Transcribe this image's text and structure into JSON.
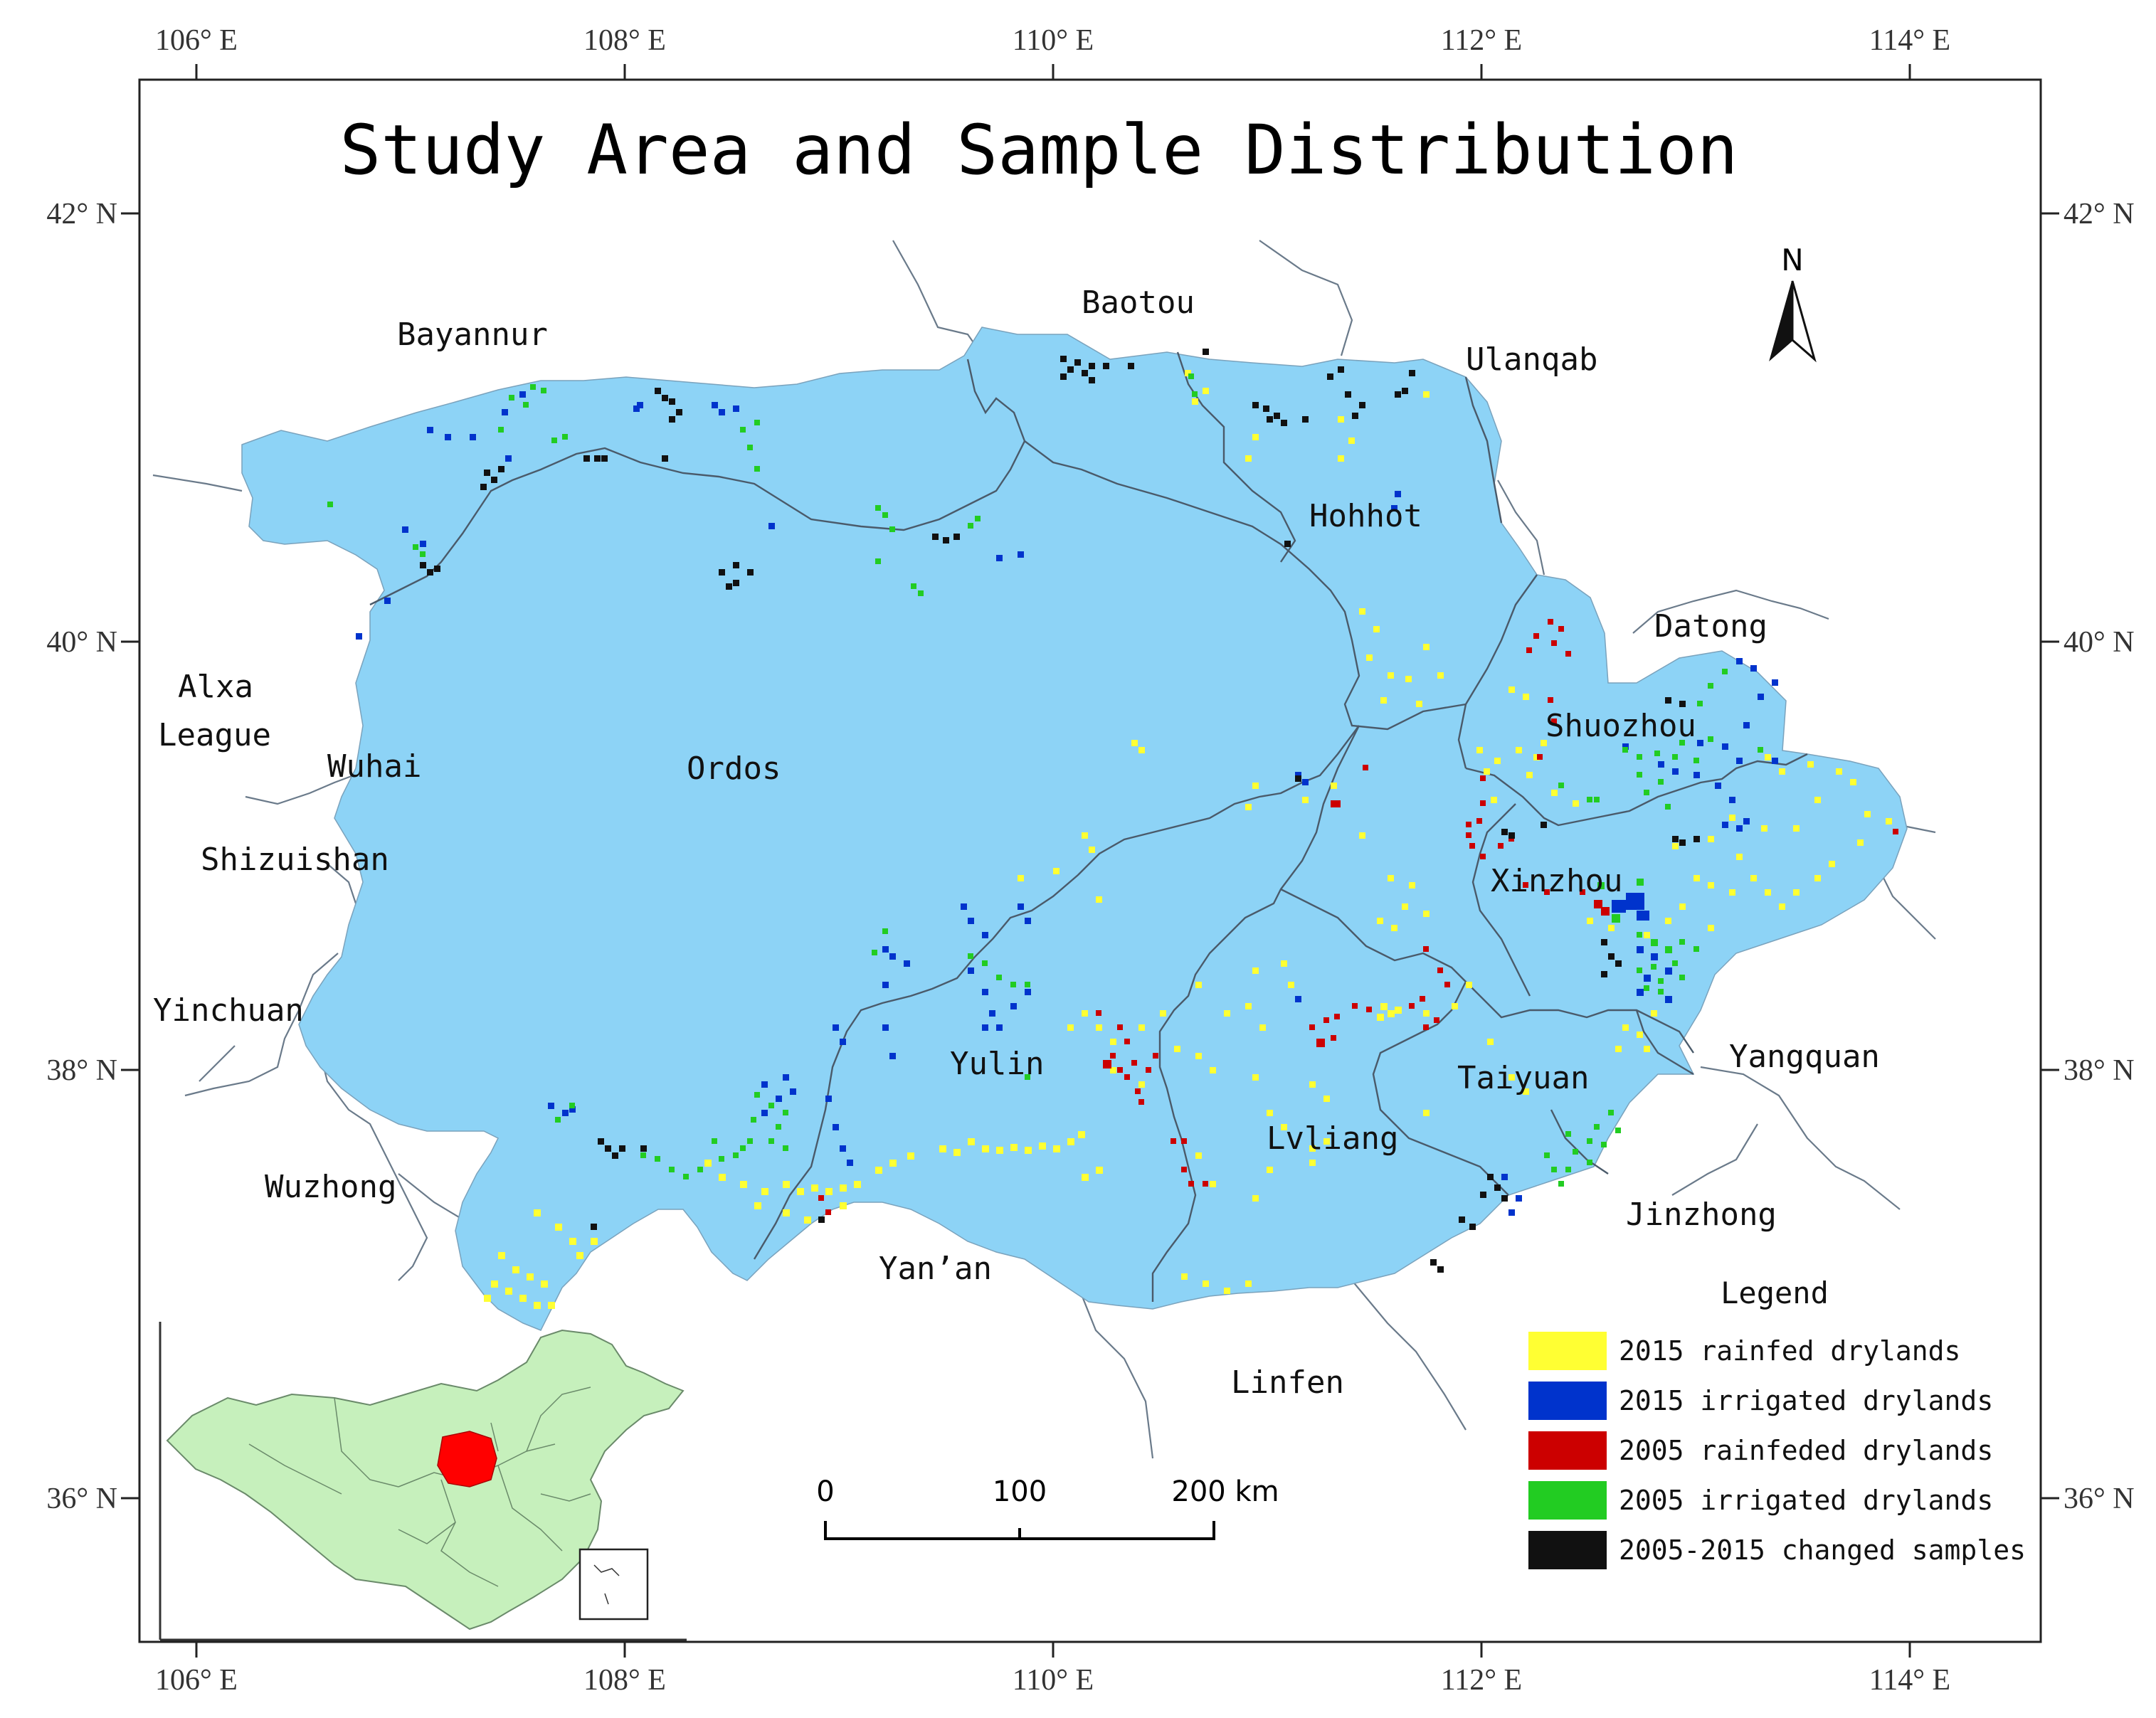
{
  "title": "Study Area and Sample Distribution",
  "colors": {
    "region_fill": "#8dd3f6",
    "boundary": "#5a6a7a",
    "rainfed_2015": "#ffff33",
    "irrigated_2015": "#0033cc",
    "rainfed_2005": "#cc0000",
    "irrigated_2005": "#22cc22",
    "changed": "#111111",
    "inset_land": "#c6f0bc",
    "inset_highlight": "#ff0000"
  },
  "top_lon_labels": [
    "106° E",
    "108° E",
    "110° E",
    "112° E",
    "114° E"
  ],
  "bottom_lon_labels": [
    "106° E",
    "108° E",
    "110° E",
    "112° E",
    "114° E"
  ],
  "left_lat_labels": [
    "42° N",
    "40° N",
    "38° N",
    "36° N"
  ],
  "right_lat_labels": [
    "42° N",
    "40° N",
    "38° N",
    "36° N"
  ],
  "cities": {
    "bayannur": "Bayannur",
    "baotou": "Baotou",
    "ulanqab": "Ulanqab",
    "hohhot": "Hohhot",
    "datong": "Datong",
    "shuozhou": "Shuozhou",
    "alxa_line1": "Alxa",
    "alxa_line2": "League",
    "wuhai": "Wuhai",
    "ordos": "Ordos",
    "shizuishan": "Shizuishan",
    "xinzhou": "Xinzhou",
    "yinchuan": "Yinchuan",
    "yulin": "Yulin",
    "yangquan": "Yangquan",
    "taiyuan": "Taiyuan",
    "lvliang": "Lvliang",
    "wuzhong": "Wuzhong",
    "jinzhong": "Jinzhong",
    "yanan": "Yan’an",
    "linfen": "Linfen"
  },
  "north_arrow": {
    "label": "N"
  },
  "scale_bar": {
    "labels": [
      "0",
      "100",
      "200 km"
    ]
  },
  "legend": {
    "title": "Legend",
    "items": [
      {
        "label": "2015 rainfed drylands",
        "color": "#ffff33",
        "class": "rainfed_2015"
      },
      {
        "label": "2015 irrigated drylands",
        "color": "#0033cc",
        "class": "irrigated_2015"
      },
      {
        "label": "2005 rainfeded drylands",
        "color": "#cc0000",
        "class": "rainfed_2005"
      },
      {
        "label": "2005 irrigated drylands",
        "color": "#22cc22",
        "class": "irrigated_2005"
      },
      {
        "label": "2005-2015 changed samples",
        "color": "#111111",
        "class": "changed"
      }
    ]
  }
}
